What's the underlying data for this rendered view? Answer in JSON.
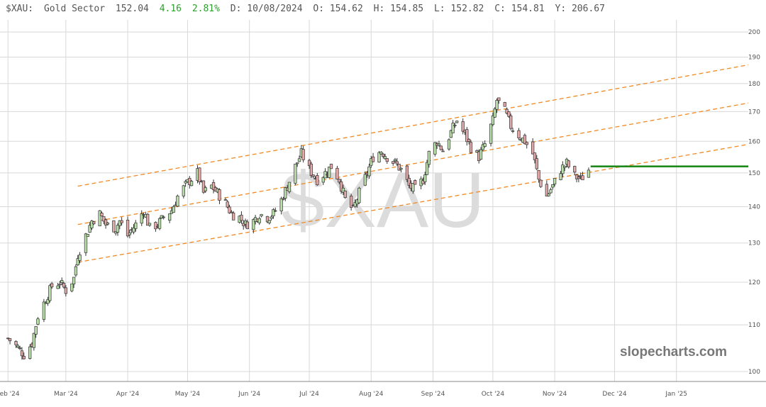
{
  "header": {
    "symbol": "$XAU:",
    "name": "Gold Sector",
    "last": "152.04",
    "change": "4.16",
    "change_pct": "2.81%",
    "date": "D: 10/08/2024",
    "open": "O: 154.62",
    "high": "H: 154.85",
    "low": "L: 152.82",
    "close": "C: 154.81",
    "y_value": "Y: 206.67"
  },
  "watermark": "$XAU",
  "brand": "slopecharts.com",
  "colors": {
    "up_body": "#b8e0a8",
    "down_body": "#e3a8a8",
    "candle_outline": "#333333",
    "trend_line": "#f08a24",
    "support_line": "#1e8a1e",
    "change_positive": "#2e9e2e",
    "grid": "#d8d8d8"
  },
  "chart_data": {
    "type": "candlestick",
    "title": "",
    "xlabel": "",
    "ylabel": "",
    "y_scale": "log",
    "ylim": [
      98,
      205
    ],
    "x_range": [
      "2024-01-28",
      "2025-02-06"
    ],
    "grid": true,
    "y_ticks": [
      100,
      110,
      120,
      130,
      140,
      150,
      160,
      170,
      180,
      190,
      200
    ],
    "x_ticks": [
      {
        "date": "2024-02-01",
        "label": "Feb '24"
      },
      {
        "date": "2024-03-01",
        "label": "Mar '24"
      },
      {
        "date": "2024-04-01",
        "label": "Apr '24"
      },
      {
        "date": "2024-05-01",
        "label": "May '24"
      },
      {
        "date": "2024-06-01",
        "label": "Jun '24"
      },
      {
        "date": "2024-07-01",
        "label": "Jul '24"
      },
      {
        "date": "2024-08-01",
        "label": "Aug '24"
      },
      {
        "date": "2024-09-01",
        "label": "Sep '24"
      },
      {
        "date": "2024-10-01",
        "label": "Oct '24"
      },
      {
        "date": "2024-11-01",
        "label": "Nov '24"
      },
      {
        "date": "2024-12-01",
        "label": "Dec '24"
      },
      {
        "date": "2025-01-01",
        "label": "Jan '25"
      }
    ],
    "price_path": [
      [
        "2024-02-01",
        107
      ],
      [
        "2024-02-06",
        105
      ],
      [
        "2024-02-09",
        103.5
      ],
      [
        "2024-02-13",
        106
      ],
      [
        "2024-02-16",
        112
      ],
      [
        "2024-02-20",
        116
      ],
      [
        "2024-02-23",
        119
      ],
      [
        "2024-02-27",
        120
      ],
      [
        "2024-03-01",
        118
      ],
      [
        "2024-03-05",
        121
      ],
      [
        "2024-03-07",
        127
      ],
      [
        "2024-03-11",
        132
      ],
      [
        "2024-03-14",
        136
      ],
      [
        "2024-03-18",
        138
      ],
      [
        "2024-03-21",
        135
      ],
      [
        "2024-03-26",
        134
      ],
      [
        "2024-03-28",
        136
      ],
      [
        "2024-04-01",
        132
      ],
      [
        "2024-04-05",
        135
      ],
      [
        "2024-04-09",
        139
      ],
      [
        "2024-04-12",
        134
      ],
      [
        "2024-04-16",
        135
      ],
      [
        "2024-04-19",
        137
      ],
      [
        "2024-04-23",
        139
      ],
      [
        "2024-04-26",
        143
      ],
      [
        "2024-05-01",
        147
      ],
      [
        "2024-05-06",
        150
      ],
      [
        "2024-05-09",
        144
      ],
      [
        "2024-05-13",
        146
      ],
      [
        "2024-05-16",
        144
      ],
      [
        "2024-05-20",
        141
      ],
      [
        "2024-05-23",
        138
      ],
      [
        "2024-05-27",
        137
      ],
      [
        "2024-05-30",
        135
      ],
      [
        "2024-06-03",
        136
      ],
      [
        "2024-06-06",
        138
      ],
      [
        "2024-06-10",
        137
      ],
      [
        "2024-06-13",
        138
      ],
      [
        "2024-06-17",
        142
      ],
      [
        "2024-06-20",
        146
      ],
      [
        "2024-06-24",
        152
      ],
      [
        "2024-06-27",
        156
      ],
      [
        "2024-07-01",
        151
      ],
      [
        "2024-07-05",
        148
      ],
      [
        "2024-07-09",
        150
      ],
      [
        "2024-07-12",
        152
      ],
      [
        "2024-07-16",
        148
      ],
      [
        "2024-07-19",
        142
      ],
      [
        "2024-07-23",
        139
      ],
      [
        "2024-07-26",
        144
      ],
      [
        "2024-07-30",
        150
      ],
      [
        "2024-08-02",
        155
      ],
      [
        "2024-08-06",
        157
      ],
      [
        "2024-08-09",
        155
      ],
      [
        "2024-08-13",
        153
      ],
      [
        "2024-08-16",
        151
      ],
      [
        "2024-08-20",
        146
      ],
      [
        "2024-08-23",
        145
      ],
      [
        "2024-08-27",
        148
      ],
      [
        "2024-08-30",
        156
      ],
      [
        "2024-09-03",
        160
      ],
      [
        "2024-09-06",
        157
      ],
      [
        "2024-09-10",
        163
      ],
      [
        "2024-09-13",
        167
      ],
      [
        "2024-09-17",
        162
      ],
      [
        "2024-09-20",
        158
      ],
      [
        "2024-09-24",
        155
      ],
      [
        "2024-09-27",
        159
      ],
      [
        "2024-10-01",
        167
      ],
      [
        "2024-10-03",
        174
      ],
      [
        "2024-10-07",
        170
      ],
      [
        "2024-10-10",
        165
      ],
      [
        "2024-10-14",
        162
      ],
      [
        "2024-10-17",
        160
      ],
      [
        "2024-10-21",
        156
      ],
      [
        "2024-10-24",
        148
      ],
      [
        "2024-10-28",
        143
      ],
      [
        "2024-10-31",
        146
      ],
      [
        "2024-11-04",
        151
      ],
      [
        "2024-11-07",
        153
      ],
      [
        "2024-11-11",
        149
      ],
      [
        "2024-11-14",
        148
      ],
      [
        "2024-11-18",
        151
      ]
    ],
    "trend_channel": [
      {
        "from": [
          "2024-03-07",
          146
        ],
        "to": [
          "2025-02-06",
          187
        ]
      },
      {
        "from": [
          "2024-03-07",
          135
        ],
        "to": [
          "2025-02-06",
          173
        ]
      },
      {
        "from": [
          "2024-03-07",
          125
        ],
        "to": [
          "2025-02-06",
          159
        ]
      }
    ],
    "horizontal_line": {
      "value": 152,
      "from": "2024-11-19",
      "to": "2025-02-06"
    }
  }
}
